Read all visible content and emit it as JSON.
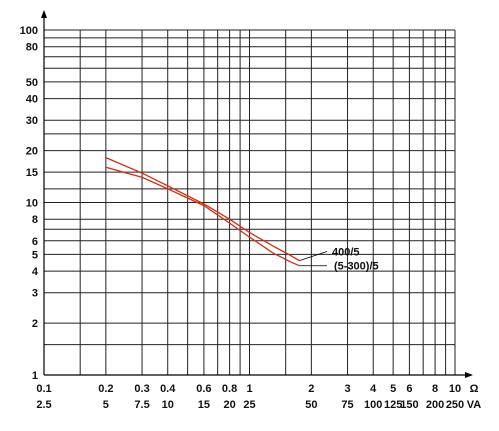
{
  "chart_data": {
    "type": "line",
    "x_scale": "log",
    "y_scale": "log",
    "xlim": [
      0.1,
      10
    ],
    "ylim": [
      1,
      100
    ],
    "grid": true,
    "x_ticks_ohm": [
      "0.1",
      "0.2",
      "0.3",
      "0.4",
      "0.6",
      "0.8",
      "1",
      "2",
      "3",
      "4",
      "5",
      "6",
      "8",
      "10"
    ],
    "x_ticks_va": [
      "2.5",
      "5",
      "7.5",
      "10",
      "15",
      "20",
      "25",
      "50",
      "75",
      "100",
      "125",
      "150",
      "200",
      "250"
    ],
    "x_tick_values": [
      0.1,
      0.2,
      0.3,
      0.4,
      0.6,
      0.8,
      1,
      2,
      3,
      4,
      5,
      6,
      8,
      10
    ],
    "x_unit_ohm": "Ω",
    "x_unit_va": "VA",
    "y_ticks": [
      "1",
      "2",
      "3",
      "4",
      "5",
      "6",
      "8",
      "10",
      "15",
      "20",
      "30",
      "40",
      "50",
      "80",
      "100"
    ],
    "y_tick_values": [
      1,
      2,
      3,
      4,
      5,
      6,
      8,
      10,
      15,
      20,
      30,
      40,
      50,
      80,
      100
    ],
    "y_grid_values": [
      1,
      1.5,
      2,
      3,
      4,
      5,
      6,
      7,
      8,
      10,
      12,
      15,
      20,
      25,
      30,
      40,
      50,
      60,
      70,
      80,
      90,
      100
    ],
    "x_grid_values": [
      0.1,
      0.15,
      0.2,
      0.3,
      0.4,
      0.5,
      0.6,
      0.7,
      0.8,
      0.9,
      1,
      1.5,
      2,
      3,
      4,
      5,
      6,
      7,
      8,
      9,
      10
    ],
    "series": [
      {
        "name": "400/5",
        "color": "#d62b10",
        "points": [
          [
            0.2,
            18.2
          ],
          [
            0.3,
            14.8
          ],
          [
            0.4,
            12.5
          ],
          [
            0.6,
            9.8
          ],
          [
            0.8,
            8.0
          ],
          [
            1.0,
            6.7
          ],
          [
            1.3,
            5.6
          ],
          [
            1.6,
            4.9
          ],
          [
            1.75,
            4.6
          ]
        ]
      },
      {
        "name": "(5-300)/5",
        "color": "#d62b10",
        "points": [
          [
            0.2,
            16.0
          ],
          [
            0.3,
            14.0
          ],
          [
            0.4,
            12.0
          ],
          [
            0.6,
            9.6
          ],
          [
            0.8,
            7.6
          ],
          [
            1.0,
            6.3
          ],
          [
            1.3,
            5.1
          ],
          [
            1.6,
            4.5
          ],
          [
            1.75,
            4.3
          ]
        ]
      }
    ],
    "legend_placement": "right-of-curves"
  }
}
